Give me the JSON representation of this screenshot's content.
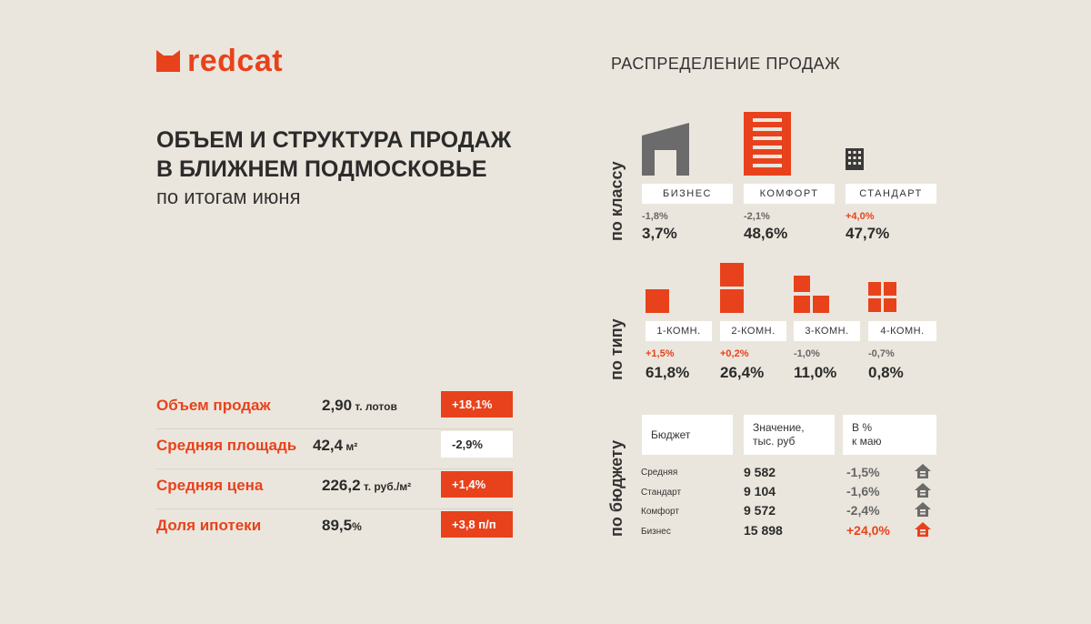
{
  "brand": {
    "name": "redcat",
    "color": "#e8421c",
    "icon": "cat-ears-icon"
  },
  "headline": {
    "line1": "ОБЪЕМ И СТРУКТУРА ПРОДАЖ",
    "line2": "В БЛИЖНЕМ ПОДМОСКОВЬЕ",
    "subtitle": "по итогам июня"
  },
  "metrics": [
    {
      "label": "Объем продаж",
      "value": "2,90",
      "unit": " т. лотов",
      "change": "+18,1%"
    },
    {
      "label": "Средняя площадь",
      "value": "42,4",
      "unit": " м²",
      "change": "-2,9%"
    },
    {
      "label": "Средняя цена",
      "value": "226,2",
      "unit": " т. руб./м²",
      "change": "+1,4%"
    },
    {
      "label": "Доля ипотеки",
      "value": "89,5",
      "unit": "%",
      "change": "+3,8 п/п"
    }
  ],
  "distribution": {
    "title": "РАСПРЕДЕЛЕНИЕ ПРОДАЖ",
    "by_class": {
      "label": "по классу",
      "items": [
        {
          "name": "БИЗНЕС",
          "change": "-1,8%",
          "value": "3,7%",
          "icon": "business-building-icon"
        },
        {
          "name": "КОМФОРТ",
          "change": "-2,1%",
          "value": "48,6%",
          "icon": "comfort-building-icon"
        },
        {
          "name": "СТАНДАРТ",
          "change": "+4,0%",
          "value": "47,7%",
          "icon": "standard-building-icon"
        }
      ]
    },
    "by_type": {
      "label": "по типу",
      "items": [
        {
          "name": "1-КОМН.",
          "change": "+1,5%",
          "value": "61,8%"
        },
        {
          "name": "2-КОМН.",
          "change": "+0,2%",
          "value": "26,4%"
        },
        {
          "name": "3-КОМН.",
          "change": "-1,0%",
          "value": "11,0%"
        },
        {
          "name": "4-КОМН.",
          "change": "-0,7%",
          "value": "0,8%"
        }
      ]
    },
    "by_budget": {
      "label": "по бюджету",
      "headers": [
        "Бюджет",
        "Значение,\nтыс. руб",
        "В %\nк маю"
      ],
      "rows": [
        {
          "name": "Средняя",
          "value": "9 582",
          "change": "-1,5%"
        },
        {
          "name": "Стандарт",
          "value": "9 104",
          "change": "-1,6%"
        },
        {
          "name": "Комфорт",
          "value": "9 572",
          "change": "-2,4%"
        },
        {
          "name": "Бизнес",
          "value": "15 898",
          "change": "+24,0%"
        }
      ]
    }
  }
}
